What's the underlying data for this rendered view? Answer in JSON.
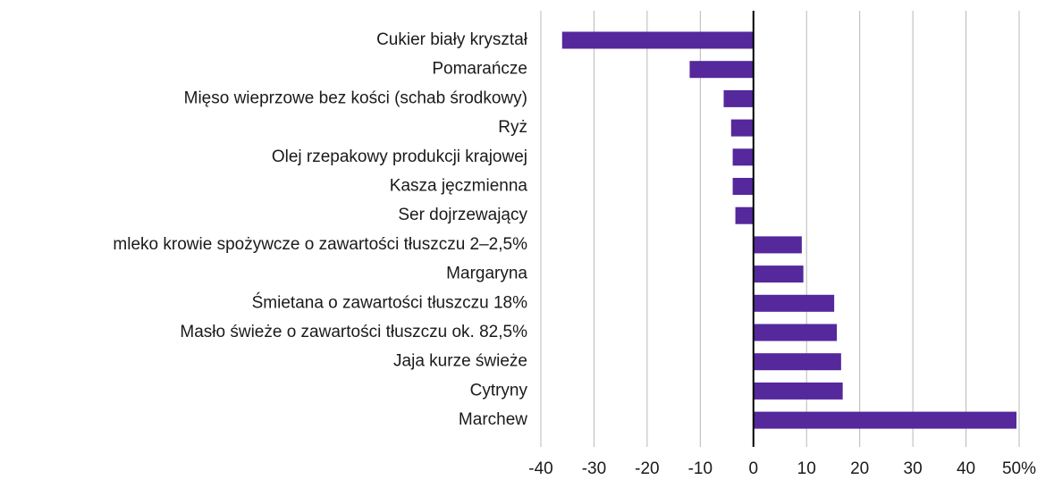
{
  "chart_data": {
    "type": "barh",
    "categories": [
      "Cukier biały kryształ",
      "Pomarańcze",
      "Mięso wieprzowe bez kości (schab środkowy)",
      "Ryż",
      "Olej rzepakowy produkcji krajowej",
      "Kasza jęczmienna",
      "Ser dojrzewający",
      "mleko krowie spożywcze o zawartości tłuszczu 2–2,5%",
      "Margaryna",
      "Śmietana o zawartości tłuszczu 18%",
      "Masło świeże o zawartości tłuszczu ok. 82,5%",
      "Jaja kurze świeże",
      "Cytryny",
      "Marchew"
    ],
    "values": [
      -36,
      -12,
      -5.6,
      -4.2,
      -3.9,
      -3.9,
      -3.4,
      9.1,
      9.4,
      15.2,
      15.7,
      16.5,
      16.8,
      49.5
    ],
    "color": "#55289c",
    "xlim": [
      -40,
      50
    ],
    "xticks": [
      -40,
      -30,
      -20,
      -10,
      0,
      10,
      20,
      30,
      40,
      {
        "value": 50,
        "label": "50%"
      }
    ],
    "grid": true
  }
}
